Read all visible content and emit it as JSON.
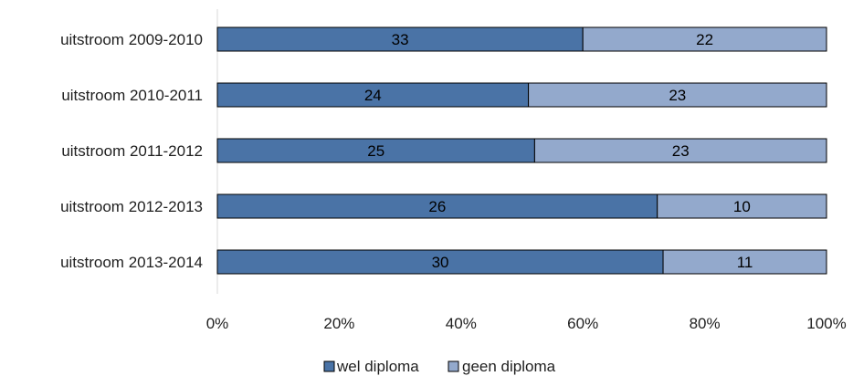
{
  "chart_data": {
    "type": "bar",
    "orientation": "horizontal",
    "stacking": "percent",
    "categories": [
      "uitstroom 2009-2010",
      "uitstroom 2010-2011",
      "uitstroom 2011-2012",
      "uitstroom 2012-2013",
      "uitstroom 2013-2014"
    ],
    "series": [
      {
        "name": "wel diploma",
        "values": [
          33,
          24,
          25,
          26,
          30
        ],
        "color": "#4a73a6"
      },
      {
        "name": "geen diploma",
        "values": [
          22,
          23,
          23,
          10,
          11
        ],
        "color": "#93a9cc"
      }
    ],
    "xaxis": {
      "ticks": [
        "0%",
        "20%",
        "40%",
        "60%",
        "80%",
        "100%"
      ],
      "range": [
        0,
        100
      ]
    },
    "grid": false,
    "legend_position": "bottom",
    "bar_edge_color": "#000000"
  }
}
